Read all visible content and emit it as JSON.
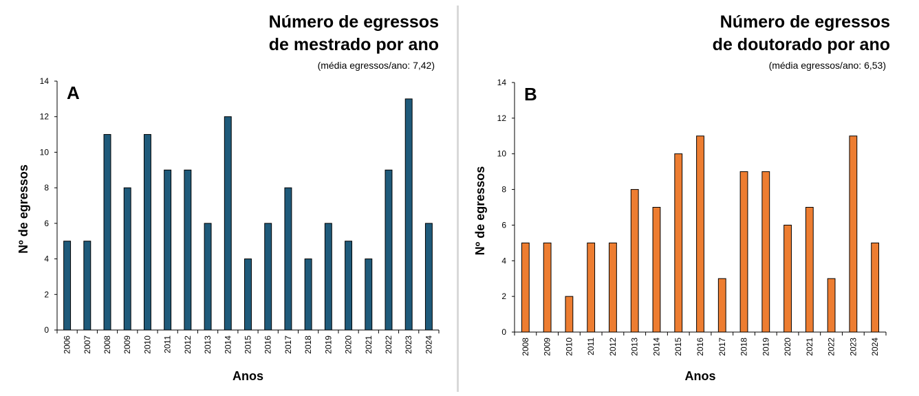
{
  "chart_data": [
    {
      "type": "bar",
      "panel_letter": "A",
      "title_line1": "Número de egressos",
      "title_line2": "de mestrado por ano",
      "subtitle": "(média egressos/ano: 7,42)",
      "xlabel": "Anos",
      "ylabel": "Nº de egressos",
      "ylim": [
        0,
        14
      ],
      "yticks": [
        0,
        2,
        4,
        6,
        8,
        10,
        12,
        14
      ],
      "bar_color": "#1f5a7a",
      "categories": [
        "2006",
        "2007",
        "2008",
        "2009",
        "2010",
        "2011",
        "2012",
        "2013",
        "2014",
        "2015",
        "2016",
        "2017",
        "2018",
        "2019",
        "2020",
        "2021",
        "2022",
        "2023",
        "2024"
      ],
      "values": [
        5,
        5,
        11,
        8,
        11,
        9,
        9,
        6,
        12,
        4,
        6,
        8,
        4,
        6,
        5,
        4,
        9,
        13,
        6
      ]
    },
    {
      "type": "bar",
      "panel_letter": "B",
      "title_line1": "Número de egressos",
      "title_line2": "de doutorado por ano",
      "subtitle": "(média egressos/ano: 6,53)",
      "xlabel": "Anos",
      "ylabel": "Nº de egressos",
      "ylim": [
        0,
        14
      ],
      "yticks": [
        0,
        2,
        4,
        6,
        8,
        10,
        12,
        14
      ],
      "bar_color": "#ed7d31",
      "categories": [
        "2008",
        "2009",
        "2010",
        "2011",
        "2012",
        "2013",
        "2014",
        "2015",
        "2016",
        "2017",
        "2018",
        "2019",
        "2020",
        "2021",
        "2022",
        "2023",
        "2024"
      ],
      "values": [
        5,
        5,
        2,
        5,
        5,
        8,
        7,
        10,
        11,
        3,
        9,
        9,
        6,
        7,
        3,
        11,
        5
      ]
    }
  ]
}
